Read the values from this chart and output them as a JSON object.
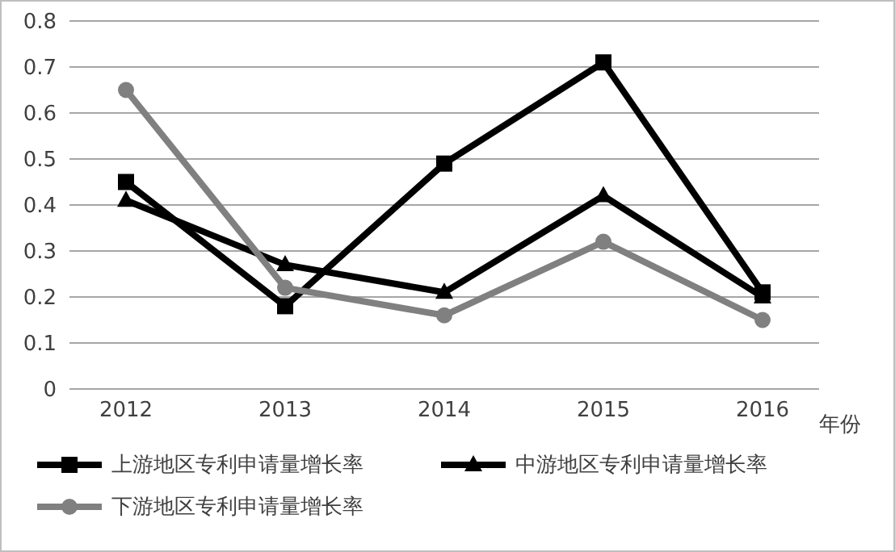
{
  "chart_data": {
    "type": "line",
    "xlabel": "年份",
    "categories": [
      "2012",
      "2013",
      "2014",
      "2015",
      "2016"
    ],
    "series": [
      {
        "name": "上游地区专利申请量增长率",
        "color": "#000000",
        "marker": "square",
        "values": [
          0.45,
          0.18,
          0.49,
          0.71,
          0.21
        ]
      },
      {
        "name": "中游地区专利申请量增长率",
        "color": "#000000",
        "marker": "triangle",
        "values": [
          0.41,
          0.27,
          0.21,
          0.42,
          0.2
        ]
      },
      {
        "name": "下游地区专利申请量增长率",
        "color": "#808080",
        "marker": "circle",
        "values": [
          0.65,
          0.22,
          0.16,
          0.32,
          0.15
        ]
      }
    ],
    "ylim": [
      0,
      0.8
    ],
    "yticks": [
      0,
      0.1,
      0.2,
      0.3,
      0.4,
      0.5,
      0.6,
      0.7,
      0.8
    ],
    "grid": "y",
    "legend": "bottom"
  }
}
